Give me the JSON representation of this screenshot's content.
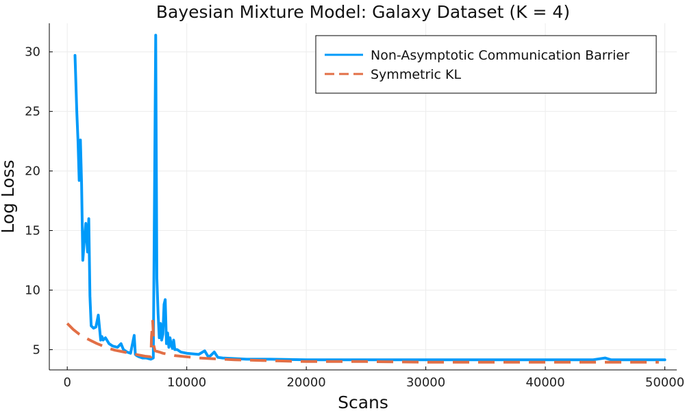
{
  "chart_data": {
    "type": "line",
    "title": "Bayesian Mixture Model: Galaxy Dataset (K = 4)",
    "xlabel": "Scans",
    "ylabel": "Log Loss",
    "xlim": [
      -1500,
      51000
    ],
    "ylim": [
      3.3,
      32.4
    ],
    "xticks": [
      0,
      10000,
      20000,
      30000,
      40000,
      50000
    ],
    "xtick_labels": [
      "0",
      "10000",
      "20000",
      "30000",
      "40000",
      "50000"
    ],
    "yticks": [
      5,
      10,
      15,
      20,
      25,
      30
    ],
    "ytick_labels": [
      "5",
      "10",
      "15",
      "20",
      "25",
      "30"
    ],
    "grid": true,
    "legend": {
      "position": "top-right"
    },
    "series": [
      {
        "name": "Non-Asymptotic Communication Barrier",
        "color": "#009AF9",
        "style": "solid",
        "x": [
          650,
          800,
          900,
          1000,
          1100,
          1200,
          1300,
          1400,
          1550,
          1700,
          1800,
          1900,
          2000,
          2200,
          2400,
          2600,
          2800,
          2900,
          3000,
          3200,
          3500,
          3800,
          4200,
          4500,
          4700,
          5000,
          5300,
          5600,
          5700,
          5800,
          6000,
          6300,
          6600,
          7000,
          7200,
          7400,
          7500,
          7600,
          7700,
          7800,
          7900,
          8000,
          8100,
          8200,
          8300,
          8400,
          8500,
          8600,
          8700,
          8800,
          8900,
          9000,
          9200,
          9500,
          10000,
          11000,
          11500,
          11800,
          12000,
          12300,
          12600,
          13000,
          14000,
          15000,
          17000,
          20000,
          25000,
          30000,
          35000,
          40000,
          44000,
          45000,
          45500,
          50000
        ],
        "values": [
          29.7,
          25.0,
          22.5,
          19.2,
          22.6,
          18.9,
          12.5,
          13.8,
          15.6,
          13.2,
          16.0,
          9.5,
          7.0,
          6.8,
          6.9,
          7.9,
          5.8,
          6.1,
          5.8,
          6.0,
          5.5,
          5.3,
          5.2,
          5.5,
          5.0,
          4.8,
          4.7,
          6.2,
          4.6,
          4.5,
          4.4,
          4.3,
          4.3,
          4.2,
          4.3,
          31.4,
          11.0,
          8.0,
          6.0,
          7.2,
          5.8,
          6.3,
          8.8,
          9.2,
          5.5,
          6.4,
          5.2,
          6.0,
          5.4,
          5.1,
          5.8,
          5.0,
          5.0,
          4.8,
          4.7,
          4.6,
          4.9,
          4.4,
          4.5,
          4.8,
          4.35,
          4.3,
          4.25,
          4.2,
          4.2,
          4.15,
          4.15,
          4.15,
          4.15,
          4.15,
          4.15,
          4.3,
          4.15,
          4.15
        ]
      },
      {
        "name": "Symmetric KL",
        "color": "#E26F46",
        "style": "dashed",
        "x": [
          0,
          500,
          1000,
          1500,
          2000,
          2500,
          3000,
          3500,
          4000,
          4500,
          5000,
          5500,
          6000,
          6500,
          7000,
          7050,
          7150,
          7250,
          7350,
          7700,
          8000,
          8500,
          9000,
          10000,
          11000,
          12000,
          13000,
          14000,
          16000,
          18000,
          20000,
          25000,
          30000,
          35000,
          40000,
          45000,
          49500
        ],
        "values": [
          7.2,
          6.7,
          6.3,
          6.0,
          5.75,
          5.5,
          5.3,
          5.1,
          4.95,
          4.85,
          4.75,
          4.65,
          4.55,
          4.45,
          4.4,
          6.1,
          7.4,
          5.3,
          4.9,
          4.8,
          4.7,
          4.6,
          4.5,
          4.4,
          4.3,
          4.25,
          4.2,
          4.15,
          4.1,
          4.05,
          4.0,
          4.0,
          3.95,
          3.95,
          3.95,
          3.95,
          3.95
        ]
      }
    ]
  }
}
